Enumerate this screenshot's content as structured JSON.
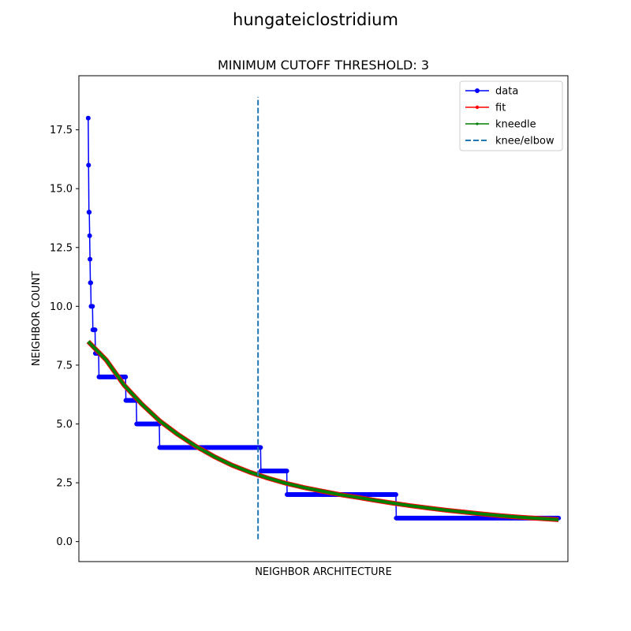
{
  "figure_title": "hungateiclostridium",
  "chart_data": {
    "type": "line",
    "title": "MINIMUM CUTOFF THRESHOLD: 3",
    "xlabel": "NEIGHBOR ARCHITECTURE",
    "ylabel": "NEIGHBOR COUNT",
    "x_tick_labels": "none",
    "xlim": [
      -26,
      1336
    ],
    "ylim": [
      -0.85,
      19.8
    ],
    "y_ticks": [
      0.0,
      2.5,
      5.0,
      7.5,
      10.0,
      12.5,
      15.0,
      17.5
    ],
    "y_tick_labels": [
      "0.0",
      "2.5",
      "5.0",
      "7.5",
      "10.0",
      "12.5",
      "15.0",
      "17.5"
    ],
    "grid": false,
    "legend_position": "upper right",
    "series": [
      {
        "name": "data",
        "color": "#0000ff",
        "marker": "circle",
        "style": "step",
        "steps": [
          {
            "x_start": 0,
            "x_end": 0,
            "y": 18
          },
          {
            "x_start": 1,
            "x_end": 1,
            "y": 16
          },
          {
            "x_start": 2,
            "x_end": 3,
            "y": 14
          },
          {
            "x_start": 4,
            "x_end": 4,
            "y": 13
          },
          {
            "x_start": 5,
            "x_end": 5,
            "y": 12
          },
          {
            "x_start": 6,
            "x_end": 7,
            "y": 11
          },
          {
            "x_start": 8,
            "x_end": 12,
            "y": 10
          },
          {
            "x_start": 13,
            "x_end": 19,
            "y": 9
          },
          {
            "x_start": 20,
            "x_end": 29,
            "y": 8
          },
          {
            "x_start": 30,
            "x_end": 104,
            "y": 7
          },
          {
            "x_start": 105,
            "x_end": 134,
            "y": 6
          },
          {
            "x_start": 135,
            "x_end": 198,
            "y": 5
          },
          {
            "x_start": 199,
            "x_end": 480,
            "y": 4
          },
          {
            "x_start": 481,
            "x_end": 553,
            "y": 3
          },
          {
            "x_start": 554,
            "x_end": 857,
            "y": 2
          },
          {
            "x_start": 858,
            "x_end": 1310,
            "y": 1
          }
        ]
      },
      {
        "name": "fit",
        "color": "#ff0000",
        "marker": "point",
        "x": [
          0,
          50,
          100,
          150,
          200,
          250,
          300,
          350,
          400,
          450,
          480,
          500,
          550,
          600,
          650,
          700,
          750,
          800,
          850,
          900,
          950,
          1000,
          1050,
          1100,
          1150,
          1200,
          1250,
          1310
        ],
        "y": [
          8.5,
          7.72,
          6.65,
          5.83,
          5.12,
          4.55,
          4.05,
          3.62,
          3.25,
          2.95,
          2.8,
          2.7,
          2.48,
          2.3,
          2.15,
          2.0,
          1.88,
          1.75,
          1.63,
          1.52,
          1.42,
          1.33,
          1.25,
          1.17,
          1.1,
          1.04,
          0.99,
          0.93
        ]
      },
      {
        "name": "kneedle",
        "color": "#008000",
        "marker": "point",
        "x": [
          0,
          50,
          100,
          150,
          200,
          250,
          300,
          350,
          400,
          450,
          480,
          500,
          550,
          600,
          650,
          700,
          750,
          800,
          850,
          900,
          950,
          1000,
          1050,
          1100,
          1150,
          1200,
          1250,
          1310
        ],
        "y": [
          8.5,
          7.72,
          6.65,
          5.83,
          5.12,
          4.55,
          4.05,
          3.62,
          3.25,
          2.95,
          2.8,
          2.7,
          2.48,
          2.3,
          2.15,
          2.0,
          1.88,
          1.75,
          1.63,
          1.52,
          1.42,
          1.33,
          1.25,
          1.17,
          1.1,
          1.04,
          0.99,
          0.93
        ]
      },
      {
        "name": "knee/elbow",
        "color": "#1f77b4",
        "style": "dashed-vertical",
        "x": 473,
        "y_range": [
          0.1,
          18.9
        ]
      }
    ]
  }
}
